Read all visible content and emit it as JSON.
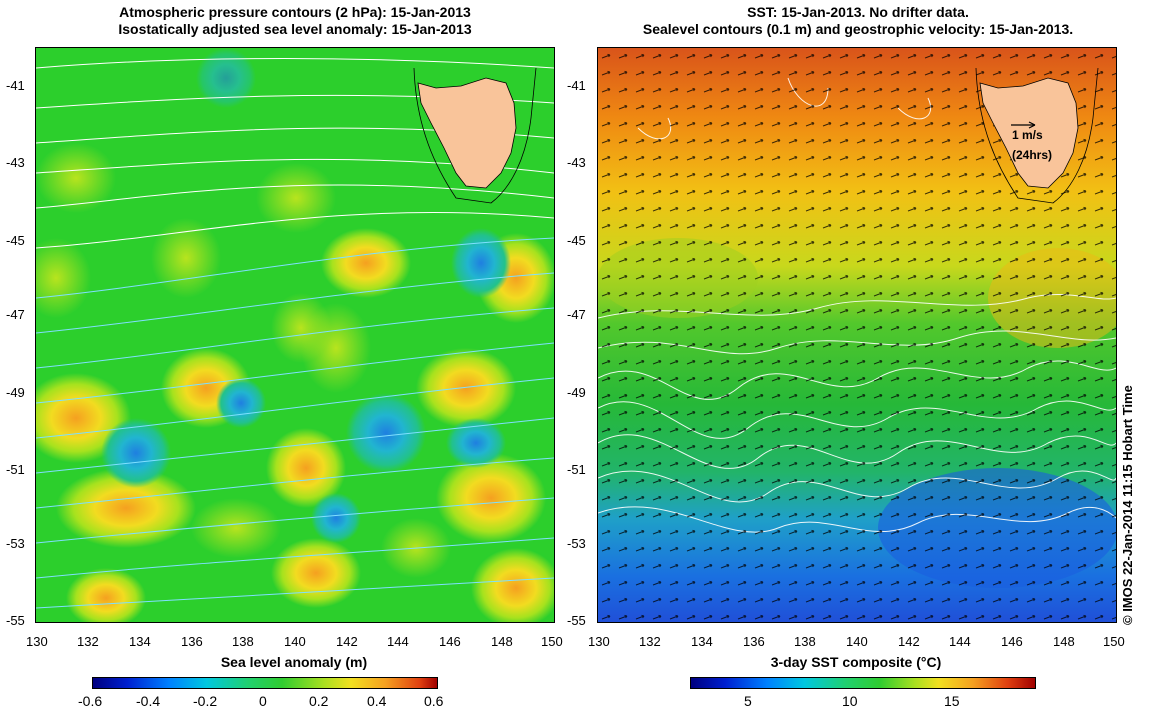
{
  "left_panel": {
    "title_line1": "Atmospheric pressure contours (2 hPa): 15-Jan-2013",
    "title_line2": "Isostatically adjusted sea level anomaly: 15-Jan-2013",
    "x_ticks": [
      "130",
      "132",
      "134",
      "136",
      "138",
      "140",
      "142",
      "144",
      "146",
      "148",
      "150"
    ],
    "y_ticks": [
      "-41",
      "-43",
      "-45",
      "-47",
      "-49",
      "-51",
      "-53",
      "-55"
    ],
    "colorbar_label": "Sea level anomaly (m)",
    "colorbar_ticks": [
      "-0.6",
      "-0.4",
      "-0.2",
      "0",
      "0.2",
      "0.4",
      "0.6"
    ]
  },
  "right_panel": {
    "title_line1": "SST: 15-Jan-2013. No drifter data.",
    "title_line2": "Sealevel contours (0.1 m) and geostrophic velocity: 15-Jan-2013.",
    "x_ticks": [
      "130",
      "132",
      "134",
      "136",
      "138",
      "140",
      "142",
      "144",
      "146",
      "148",
      "150"
    ],
    "y_ticks": [
      "-41",
      "-43",
      "-45",
      "-47",
      "-49",
      "-51",
      "-53",
      "-55"
    ],
    "velocity_scale_label": "1 m/s",
    "velocity_scale_sublabel": "(24hrs)",
    "colorbar_label": "3-day SST composite (°C)",
    "colorbar_ticks": [
      "5",
      "10",
      "15"
    ]
  },
  "copyright": "© IMOS 22-Jan-2014 11:15 Hobart Time",
  "colors": {
    "land": "#f9c49a",
    "slam_background": "#27cc2b",
    "sst_warm": "#e56a10",
    "sst_mid": "#2bbf35",
    "sst_cold": "#1e6fe0",
    "pressure_contour": "#ffffff",
    "velocity_arrow": "#000000"
  }
}
